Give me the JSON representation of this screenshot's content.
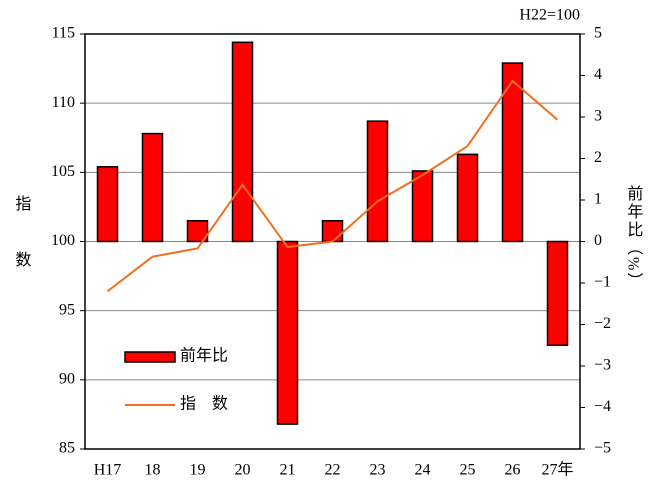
{
  "chart_data": {
    "type": "bar_line",
    "note": "H22=100",
    "ylabel": "指数",
    "y2label": "前年比（%）",
    "categories": [
      "H17",
      "18",
      "19",
      "20",
      "21",
      "22",
      "23",
      "24",
      "25",
      "26",
      "27年"
    ],
    "series": [
      {
        "name": "前年比",
        "type": "bar",
        "axis": "y2",
        "color": "#ff0000",
        "values": [
          1.8,
          2.6,
          0.5,
          4.8,
          -4.4,
          0.5,
          2.9,
          1.7,
          2.1,
          4.3,
          -2.5
        ]
      },
      {
        "name": "指　数",
        "type": "line",
        "axis": "y",
        "color": "#f07020",
        "values": [
          96.4,
          98.9,
          99.5,
          104.1,
          99.6,
          100.0,
          102.9,
          104.8,
          106.9,
          111.6,
          108.8
        ]
      }
    ],
    "ylim": [
      85,
      115
    ],
    "yticks": [
      85,
      90,
      95,
      100,
      105,
      110,
      115
    ],
    "y2lim": [
      -5,
      5
    ],
    "y2ticks": [
      {
        "value": -5,
        "label": "−5"
      },
      {
        "value": -4,
        "label": "−4"
      },
      {
        "value": -3,
        "label": "−3"
      },
      {
        "value": -2,
        "label": "−2"
      },
      {
        "value": -1,
        "label": "−1"
      },
      0,
      1,
      2,
      3,
      4,
      5
    ],
    "grid": true
  }
}
